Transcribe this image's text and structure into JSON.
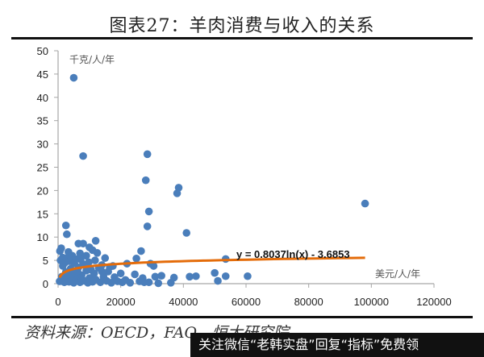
{
  "header": {
    "title": "图表27：羊肉消费与收入的关系"
  },
  "footer": {
    "source": "资料来源：OECD，FAO，恒大研究院",
    "overlay_banner": "关注微信“老韩实盘”回复“指标”免费领"
  },
  "colors": {
    "points": "#4a7ebb",
    "trendline": "#e46c0a",
    "axis": "#a6a6a6",
    "text": "#333333"
  },
  "chart_data": {
    "type": "scatter",
    "title": "图表27：羊肉消费与收入的关系",
    "xlabel": "美元/人/年",
    "ylabel": "千克/人/年",
    "xlim": [
      0,
      120000
    ],
    "ylim": [
      0,
      50
    ],
    "xticks": [
      0,
      20000,
      40000,
      60000,
      80000,
      100000,
      120000
    ],
    "yticks": [
      0,
      5,
      10,
      15,
      20,
      25,
      30,
      35,
      40,
      45,
      50
    ],
    "grid": false,
    "legend": null,
    "trendline": {
      "type": "log",
      "equation": "y = 0.8037ln(x) - 3.6853",
      "a": 0.8037,
      "b": -3.6853,
      "x_range": [
        500,
        98000
      ]
    },
    "points": [
      [
        5000,
        44.2
      ],
      [
        8000,
        27.4
      ],
      [
        28500,
        27.8
      ],
      [
        28000,
        22.2
      ],
      [
        38500,
        20.6
      ],
      [
        38000,
        19.4
      ],
      [
        29000,
        15.5
      ],
      [
        28500,
        12.3
      ],
      [
        41000,
        10.9
      ],
      [
        98000,
        17.2
      ],
      [
        2500,
        12.5
      ],
      [
        2800,
        10.6
      ],
      [
        1000,
        7.6
      ],
      [
        600,
        7.0
      ],
      [
        1500,
        5.6
      ],
      [
        800,
        5.0
      ],
      [
        6500,
        8.6
      ],
      [
        8000,
        8.6
      ],
      [
        12000,
        9.2
      ],
      [
        10000,
        7.8
      ],
      [
        11000,
        7.2
      ],
      [
        7000,
        6.5
      ],
      [
        9000,
        6.0
      ],
      [
        3000,
        5.5
      ],
      [
        4500,
        6.0
      ],
      [
        5500,
        5.3
      ],
      [
        12500,
        6.6
      ],
      [
        15000,
        5.5
      ],
      [
        26500,
        7.0
      ],
      [
        25000,
        5.4
      ],
      [
        22000,
        4.3
      ],
      [
        29500,
        4.3
      ],
      [
        30500,
        3.8
      ],
      [
        17500,
        3.8
      ],
      [
        14000,
        4.0
      ],
      [
        20000,
        2.2
      ],
      [
        24500,
        2.0
      ],
      [
        27000,
        1.2
      ],
      [
        31000,
        1.5
      ],
      [
        33000,
        1.7
      ],
      [
        37000,
        1.3
      ],
      [
        42000,
        1.5
      ],
      [
        44000,
        1.6
      ],
      [
        50000,
        2.3
      ],
      [
        51000,
        0.6
      ],
      [
        53500,
        1.6
      ],
      [
        53500,
        5.3
      ],
      [
        60500,
        1.6
      ],
      [
        36000,
        0.2
      ],
      [
        32000,
        0.1
      ],
      [
        29000,
        0.3
      ],
      [
        500,
        0.5
      ],
      [
        1200,
        1.5
      ],
      [
        2000,
        0.3
      ],
      [
        2500,
        2.5
      ],
      [
        3000,
        1.2
      ],
      [
        3500,
        0.4
      ],
      [
        4000,
        3.2
      ],
      [
        4500,
        1.0
      ],
      [
        5000,
        0.2
      ],
      [
        5500,
        2.0
      ],
      [
        6000,
        0.8
      ],
      [
        6500,
        3.5
      ],
      [
        7000,
        0.3
      ],
      [
        7500,
        1.8
      ],
      [
        8000,
        4.2
      ],
      [
        8500,
        0.6
      ],
      [
        9000,
        2.8
      ],
      [
        9500,
        0.2
      ],
      [
        10000,
        1.2
      ],
      [
        10500,
        3.0
      ],
      [
        11000,
        0.4
      ],
      [
        11500,
        2.2
      ],
      [
        12000,
        0.9
      ],
      [
        13000,
        3.4
      ],
      [
        13500,
        0.3
      ],
      [
        14500,
        1.5
      ],
      [
        15500,
        0.6
      ],
      [
        16000,
        2.6
      ],
      [
        17000,
        0.2
      ],
      [
        18000,
        1.4
      ],
      [
        19000,
        0.5
      ],
      [
        20500,
        0.3
      ],
      [
        21500,
        0.8
      ],
      [
        23000,
        0.2
      ],
      [
        26000,
        0.5
      ],
      [
        27500,
        0.3
      ],
      [
        1500,
        3.8
      ],
      [
        2200,
        4.5
      ],
      [
        3300,
        6.8
      ],
      [
        3800,
        4.8
      ],
      [
        4200,
        2.1
      ],
      [
        5200,
        4.4
      ],
      [
        6200,
        2.7
      ],
      [
        7200,
        5.2
      ],
      [
        9800,
        4.6
      ],
      [
        11800,
        5.0
      ],
      [
        14000,
        2.6
      ],
      [
        16500,
        3.6
      ]
    ]
  }
}
